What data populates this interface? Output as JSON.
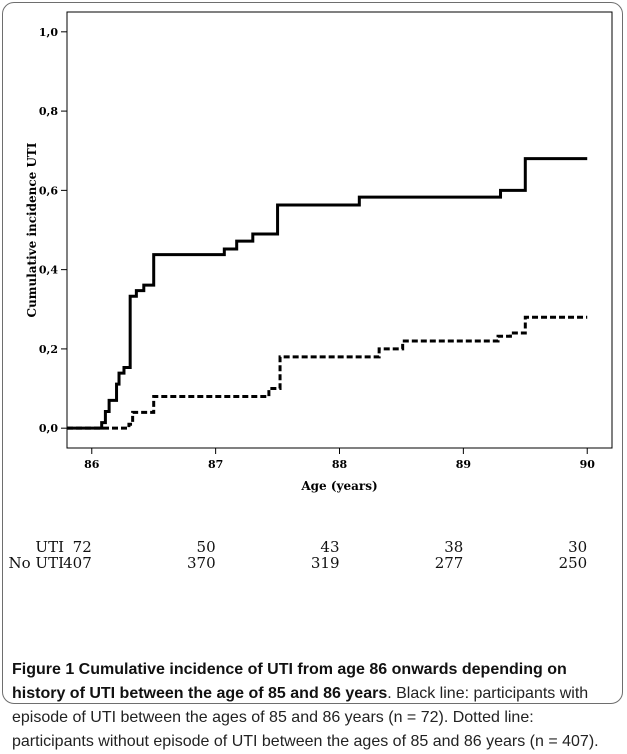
{
  "chart_data": {
    "type": "line",
    "xlabel": "Age (years)",
    "ylabel": "Cumulative incidence UTI",
    "xlim": [
      85.8,
      90.2
    ],
    "ylim": [
      -0.05,
      1.05
    ],
    "x_ticks": [
      86,
      87,
      88,
      89,
      90
    ],
    "x_tick_labels": [
      "86",
      "87",
      "88",
      "89",
      "90"
    ],
    "y_ticks": [
      0.0,
      0.2,
      0.4,
      0.6,
      0.8,
      1.0
    ],
    "y_tick_labels": [
      "0,0",
      "0,2",
      "0,4",
      "0,6",
      "0,8",
      "1,0"
    ],
    "grid": false,
    "series": [
      {
        "line_style": "solid",
        "color": "#000000",
        "steps": [
          [
            85.8,
            0.0
          ],
          [
            86.05,
            0.0
          ],
          [
            86.08,
            0.014
          ],
          [
            86.11,
            0.042
          ],
          [
            86.14,
            0.07
          ],
          [
            86.2,
            0.111
          ],
          [
            86.22,
            0.139
          ],
          [
            86.26,
            0.153
          ],
          [
            86.31,
            0.333
          ],
          [
            86.36,
            0.347
          ],
          [
            86.42,
            0.361
          ],
          [
            86.5,
            0.438
          ],
          [
            87.07,
            0.452
          ],
          [
            87.17,
            0.472
          ],
          [
            87.3,
            0.49
          ],
          [
            87.5,
            0.563
          ],
          [
            88.16,
            0.583
          ],
          [
            89.3,
            0.6
          ],
          [
            89.5,
            0.68
          ],
          [
            90.0,
            0.68
          ]
        ]
      },
      {
        "line_style": "dashed",
        "color": "#000000",
        "steps": [
          [
            85.8,
            0.0
          ],
          [
            86.23,
            0.0
          ],
          [
            86.3,
            0.01
          ],
          [
            86.33,
            0.04
          ],
          [
            86.5,
            0.08
          ],
          [
            87.43,
            0.1
          ],
          [
            87.52,
            0.18
          ],
          [
            88.32,
            0.2
          ],
          [
            88.51,
            0.22
          ],
          [
            89.28,
            0.232
          ],
          [
            89.38,
            0.24
          ],
          [
            89.5,
            0.28
          ],
          [
            90.0,
            0.28
          ]
        ]
      }
    ],
    "risk_table": {
      "rows": [
        {
          "label": "UTI",
          "values": [
            "72",
            "50",
            "43",
            "38",
            "30"
          ]
        },
        {
          "label": "No UTI",
          "values": [
            "407",
            "370",
            "319",
            "277",
            "250"
          ]
        }
      ]
    }
  },
  "caption": {
    "title": "Figure 1 Cumulative incidence of UTI from age 86 onwards depending on history of UTI between the age of 85 and 86 years",
    "body": ". Black line: participants with episode of UTI between the ages of 85 and 86 years (n = 72). Dotted line: participants without episode of UTI between the ages of 85 and 86 years (n = 407)."
  }
}
